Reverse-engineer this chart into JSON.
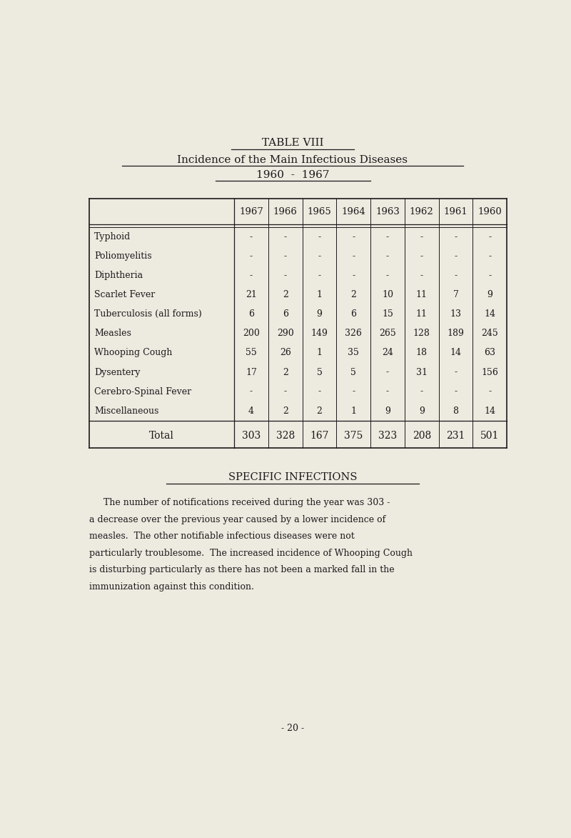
{
  "title1": "TABLE VIII",
  "title2": "Incidence of the Main Infectious Diseases",
  "title3": "1960  -  1967",
  "section_heading": "SPECIFIC INFECTIONS",
  "paragraph_lines": [
    "     The number of notifications received during the year was 303 -",
    "a decrease over the previous year caused by a lower incidence of",
    "measles.  The other notifiable infectious diseases were not",
    "particularly troublesome.  The increased incidence of Whooping Cough",
    "is disturbing particularly as there has not been a marked fall in the",
    "immunization against this condition."
  ],
  "page_number": "- 20 -",
  "background_color": "#edeae0",
  "text_color": "#1a1a1a",
  "columns": [
    "1967",
    "1966",
    "1965",
    "1964",
    "1963",
    "1962",
    "1961",
    "1960"
  ],
  "rows": [
    {
      "disease": "Typhoid",
      "values": [
        "-",
        "-",
        "-",
        "-",
        "-",
        "-",
        "-",
        "-"
      ]
    },
    {
      "disease": "Poliomyelitis",
      "values": [
        "-",
        "-",
        "-",
        "-",
        "-",
        "-",
        "-",
        "-"
      ]
    },
    {
      "disease": "Diphtheria",
      "values": [
        "-",
        "-",
        "-",
        "-",
        "-",
        "-",
        "-",
        "-"
      ]
    },
    {
      "disease": "Scarlet Fever",
      "values": [
        "21",
        "2",
        "1",
        "2",
        "10",
        "11",
        "7",
        "9"
      ]
    },
    {
      "disease": "Tuberculosis (all forms)",
      "values": [
        "6",
        "6",
        "9",
        "6",
        "15",
        "11",
        "13",
        "14"
      ]
    },
    {
      "disease": "Measles",
      "values": [
        "200",
        "290",
        "149",
        "326",
        "265",
        "128",
        "189",
        "245"
      ]
    },
    {
      "disease": "Whooping Cough",
      "values": [
        "55",
        "26",
        "1",
        "35",
        "24",
        "18",
        "14",
        "63"
      ]
    },
    {
      "disease": "Dysentery",
      "values": [
        "17",
        "2",
        "5",
        "5",
        "-",
        "31",
        "-",
        "156"
      ]
    },
    {
      "disease": "Cerebro-Spinal Fever",
      "values": [
        "-",
        "-",
        "-",
        "-",
        "-",
        "-",
        "-",
        "-"
      ]
    },
    {
      "disease": "Miscellaneous",
      "values": [
        "4",
        "2",
        "2",
        "1",
        "9",
        "9",
        "8",
        "14"
      ]
    }
  ],
  "total_row": {
    "label": "Total",
    "values": [
      "303",
      "328",
      "167",
      "375",
      "323",
      "208",
      "231",
      "501"
    ]
  }
}
